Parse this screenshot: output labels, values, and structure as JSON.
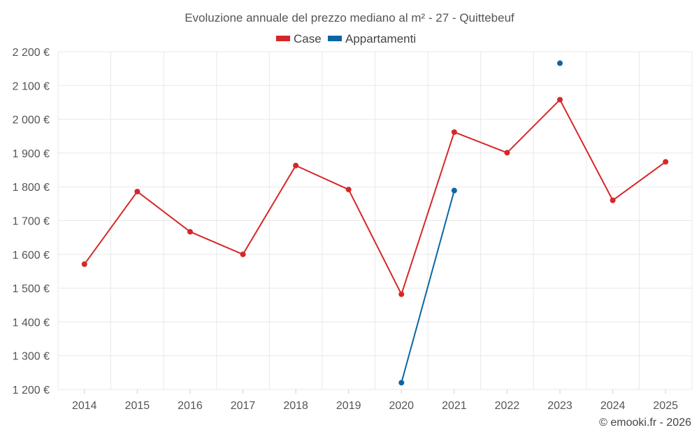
{
  "chart_data": {
    "type": "line",
    "title": "Evoluzione annuale del prezzo mediano al m² - 27 - Quittebeuf",
    "xlabel": "",
    "ylabel": "",
    "categories": [
      "2014",
      "2015",
      "2016",
      "2017",
      "2018",
      "2019",
      "2020",
      "2021",
      "2022",
      "2023",
      "2024",
      "2025"
    ],
    "ylim": [
      1200,
      2200
    ],
    "yticks": [
      1200,
      1300,
      1400,
      1500,
      1600,
      1700,
      1800,
      1900,
      2000,
      2100,
      2200
    ],
    "ytick_labels": [
      "1 200 €",
      "1 300 €",
      "1 400 €",
      "1 500 €",
      "1 600 €",
      "1 700 €",
      "1 800 €",
      "1 900 €",
      "2 000 €",
      "2 100 €",
      "2 200 €"
    ],
    "grid": true,
    "legend_position": "top-center",
    "series": [
      {
        "name": "Case",
        "color": "#d62728",
        "values": [
          1571,
          1786,
          1667,
          1600,
          1863,
          1792,
          1482,
          1962,
          1901,
          2058,
          1760,
          1874
        ]
      },
      {
        "name": "Appartamenti",
        "color": "#0b66a3",
        "values": [
          null,
          null,
          null,
          null,
          null,
          null,
          1220,
          1789,
          null,
          2166,
          null,
          null
        ]
      }
    ]
  },
  "credit": "© emooki.fr - 2026"
}
